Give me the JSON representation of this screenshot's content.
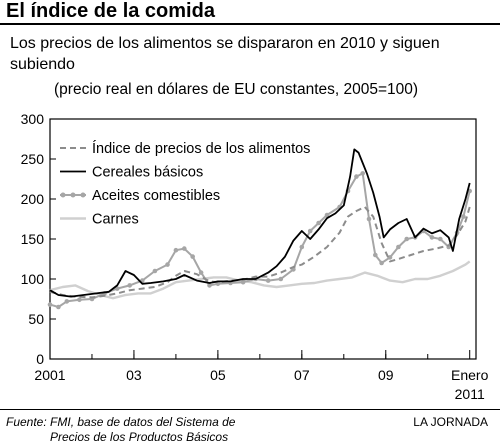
{
  "header": {
    "title": "El índice de la comida",
    "subtitle": "Los precios de los alimentos se dispararon en 2010 y siguen subiendo",
    "unit_note": "(precio real en dólares de EU constantes, 2005=100)"
  },
  "footer": {
    "source_line1": "Fuente: FMI, base de datos del Sistema de",
    "source_line2": "Precios de los Productos Básicos",
    "credit": "LA JORNADA"
  },
  "chart_data": {
    "type": "line",
    "title": "",
    "xlabel": "",
    "ylabel": "",
    "xlim": [
      2001.0,
      2011.15
    ],
    "ylim": [
      0,
      300
    ],
    "y_ticks": [
      0,
      50,
      100,
      150,
      200,
      250,
      300
    ],
    "x_ticks": [
      {
        "value": 2001.0,
        "label": "2001"
      },
      {
        "value": 2003.0,
        "label": "03"
      },
      {
        "value": 2005.0,
        "label": "05"
      },
      {
        "value": 2007.0,
        "label": "07"
      },
      {
        "value": 2009.0,
        "label": "09"
      },
      {
        "value": 2011.0,
        "label": "Enero",
        "label2": "2011"
      }
    ],
    "grid": false,
    "legend_position": "top-left",
    "series": [
      {
        "name": "Índice de precios de los alimentos",
        "style": "dashed",
        "color": "#8c8c8c",
        "x": [
          2001.0,
          2001.3,
          2001.6,
          2002.0,
          2002.3,
          2002.6,
          2002.9,
          2003.2,
          2003.5,
          2003.8,
          2004.0,
          2004.2,
          2004.5,
          2004.8,
          2005.0,
          2005.3,
          2005.6,
          2005.9,
          2006.2,
          2006.5,
          2006.8,
          2007.0,
          2007.3,
          2007.6,
          2007.9,
          2008.1,
          2008.3,
          2008.5,
          2008.7,
          2008.9,
          2009.1,
          2009.3,
          2009.6,
          2009.9,
          2010.2,
          2010.5,
          2010.7,
          2010.9,
          2011.0
        ],
        "y": [
          84,
          80,
          78,
          77,
          79,
          82,
          86,
          88,
          90,
          96,
          104,
          110,
          106,
          97,
          96,
          98,
          99,
          103,
          103,
          108,
          115,
          118,
          128,
          140,
          158,
          178,
          185,
          190,
          178,
          145,
          122,
          125,
          130,
          135,
          138,
          142,
          155,
          172,
          190
        ]
      },
      {
        "name": "Cereales básicos",
        "style": "solid",
        "color": "#000000",
        "x": [
          2001.0,
          2001.2,
          2001.5,
          2001.8,
          2002.1,
          2002.4,
          2002.6,
          2002.8,
          2003.0,
          2003.2,
          2003.4,
          2003.7,
          2004.0,
          2004.2,
          2004.5,
          2004.8,
          2005.0,
          2005.3,
          2005.6,
          2005.9,
          2006.2,
          2006.4,
          2006.6,
          2006.8,
          2007.0,
          2007.2,
          2007.4,
          2007.6,
          2007.8,
          2008.0,
          2008.15,
          2008.25,
          2008.35,
          2008.45,
          2008.55,
          2008.7,
          2008.85,
          2008.95,
          2009.1,
          2009.3,
          2009.5,
          2009.7,
          2009.9,
          2010.1,
          2010.3,
          2010.5,
          2010.6,
          2010.75,
          2010.9,
          2011.0
        ],
        "y": [
          86,
          80,
          78,
          80,
          82,
          84,
          92,
          110,
          105,
          94,
          95,
          97,
          100,
          105,
          98,
          95,
          97,
          97,
          100,
          100,
          108,
          116,
          128,
          148,
          160,
          150,
          162,
          176,
          182,
          192,
          228,
          262,
          258,
          245,
          232,
          208,
          178,
          152,
          162,
          170,
          175,
          152,
          163,
          157,
          161,
          152,
          135,
          175,
          200,
          220
        ]
      },
      {
        "name": "Aceites comestibles",
        "style": "solid-markers",
        "color": "#a6a6a6",
        "x": [
          2001.0,
          2001.2,
          2001.4,
          2001.7,
          2002.0,
          2002.3,
          2002.6,
          2002.9,
          2003.2,
          2003.5,
          2003.8,
          2004.0,
          2004.2,
          2004.4,
          2004.6,
          2004.8,
          2005.0,
          2005.3,
          2005.6,
          2005.9,
          2006.2,
          2006.5,
          2006.8,
          2007.0,
          2007.2,
          2007.4,
          2007.6,
          2007.9,
          2008.1,
          2008.3,
          2008.45,
          2008.6,
          2008.75,
          2008.9,
          2009.1,
          2009.3,
          2009.5,
          2009.7,
          2009.9,
          2010.1,
          2010.3,
          2010.5,
          2010.7,
          2010.85,
          2011.0
        ],
        "y": [
          68,
          65,
          72,
          74,
          75,
          82,
          88,
          92,
          98,
          110,
          118,
          136,
          138,
          128,
          108,
          92,
          94,
          95,
          96,
          100,
          98,
          100,
          112,
          140,
          160,
          170,
          180,
          190,
          210,
          228,
          232,
          175,
          130,
          120,
          127,
          140,
          150,
          152,
          160,
          152,
          150,
          140,
          158,
          178,
          210
        ]
      },
      {
        "name": "Carnes",
        "style": "solid",
        "color": "#d0d0d0",
        "x": [
          2001.0,
          2001.3,
          2001.6,
          2001.9,
          2002.2,
          2002.5,
          2002.8,
          2003.1,
          2003.4,
          2003.7,
          2004.0,
          2004.3,
          2004.6,
          2004.9,
          2005.2,
          2005.5,
          2005.8,
          2006.1,
          2006.4,
          2006.7,
          2007.0,
          2007.3,
          2007.6,
          2007.9,
          2008.2,
          2008.5,
          2008.8,
          2009.1,
          2009.4,
          2009.7,
          2010.0,
          2010.3,
          2010.6,
          2010.9,
          2011.0
        ],
        "y": [
          86,
          90,
          92,
          85,
          80,
          76,
          80,
          82,
          82,
          88,
          96,
          98,
          100,
          102,
          102,
          98,
          96,
          92,
          90,
          92,
          94,
          95,
          98,
          100,
          102,
          108,
          104,
          98,
          96,
          100,
          100,
          104,
          110,
          118,
          122
        ]
      }
    ]
  }
}
